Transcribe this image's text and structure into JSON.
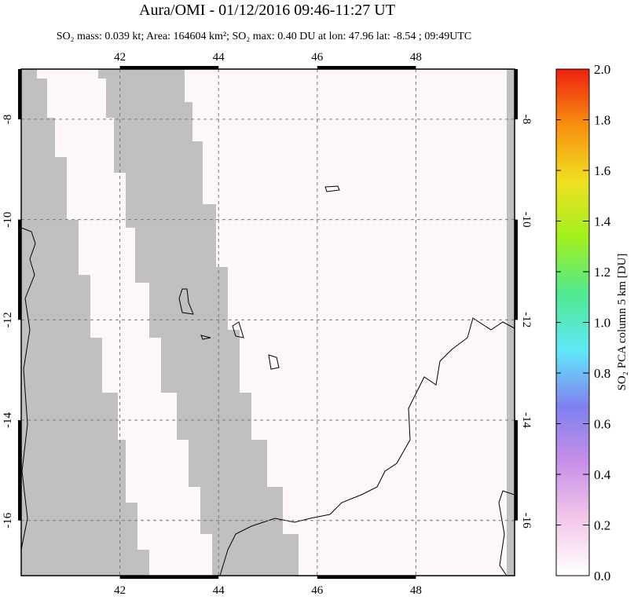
{
  "chart_data": {
    "type": "map",
    "title": "Aura/OMI - 01/12/2016 09:46-11:27 UT",
    "subtitle": "SO₂ mass: 0.039 kt; Area: 164604 km²; SO₂ max: 0.40 DU at lon: 47.96 lat: -8.54 ; 09:49UTC",
    "xlim": [
      40,
      50
    ],
    "xticks": [
      42,
      44,
      46,
      48
    ],
    "ylim": [
      -7,
      -17.1
    ],
    "yticks": [
      -8,
      -10,
      -12,
      -14,
      -16
    ],
    "grid": true,
    "colorbar": {
      "label": "SO₂ PCA column 5 km [DU]",
      "lim": [
        0,
        2
      ],
      "ticks": [
        {
          "value": 0,
          "label": "0.0"
        },
        {
          "value": 0.2,
          "label": "0.2"
        },
        {
          "value": 0.4,
          "label": "0.4"
        },
        {
          "value": 0.6,
          "label": "0.6"
        },
        {
          "value": 0.8,
          "label": "0.8"
        },
        {
          "value": 1,
          "label": "1.0"
        },
        {
          "value": 1.2,
          "label": "1.2"
        },
        {
          "value": 1.4,
          "label": "1.4"
        },
        {
          "value": 1.6,
          "label": "1.6"
        },
        {
          "value": 1.8,
          "label": "1.8"
        },
        {
          "value": 2,
          "label": "2.0"
        }
      ],
      "colors": [
        "#ffffff",
        "#f4c8ea",
        "#c890e8",
        "#8080f0",
        "#60e8f8",
        "#50e890",
        "#a0f020",
        "#f0e020",
        "#f89010",
        "#f02010"
      ]
    }
  }
}
